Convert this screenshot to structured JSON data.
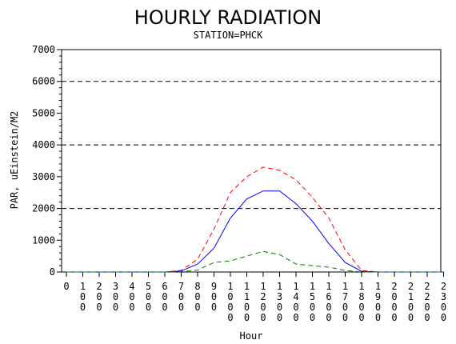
{
  "chart_data": {
    "type": "line",
    "title": "HOURLY RADIATION",
    "subtitle": "STATION=PHCK",
    "xlabel": "Hour",
    "ylabel": "PAR, uEinstein/M2",
    "ylim": [
      0,
      7000
    ],
    "yticks": [
      0,
      1000,
      2000,
      3000,
      4000,
      5000,
      6000,
      7000
    ],
    "xticks": [
      0,
      100,
      200,
      300,
      400,
      500,
      600,
      700,
      800,
      900,
      1000,
      1100,
      1200,
      1300,
      1400,
      1500,
      1600,
      1700,
      1800,
      1900,
      2000,
      2100,
      2200,
      2300
    ],
    "reference_lines": [
      2000,
      4000,
      6000
    ],
    "grid": false,
    "x": [
      0,
      100,
      200,
      300,
      400,
      500,
      600,
      700,
      800,
      900,
      1000,
      1100,
      1200,
      1300,
      1400,
      1500,
      1600,
      1700,
      1800,
      1900,
      2000,
      2100,
      2200,
      2300
    ],
    "series": [
      {
        "color": "#ff0000",
        "style": "dashed",
        "values": [
          0,
          0,
          0,
          0,
          0,
          0,
          0,
          50,
          400,
          1350,
          2500,
          3000,
          3300,
          3200,
          2900,
          2350,
          1700,
          700,
          50,
          0,
          0,
          0,
          0,
          0
        ]
      },
      {
        "color": "#0000ff",
        "style": "solid",
        "values": [
          0,
          0,
          0,
          0,
          0,
          0,
          0,
          30,
          250,
          750,
          1700,
          2300,
          2550,
          2550,
          2150,
          1600,
          900,
          300,
          20,
          0,
          0,
          0,
          0,
          0
        ]
      },
      {
        "color": "#008000",
        "style": "dashed",
        "values": [
          0,
          0,
          0,
          0,
          0,
          0,
          0,
          10,
          60,
          300,
          350,
          500,
          650,
          550,
          250,
          200,
          150,
          50,
          0,
          0,
          0,
          0,
          0,
          0
        ]
      }
    ]
  }
}
